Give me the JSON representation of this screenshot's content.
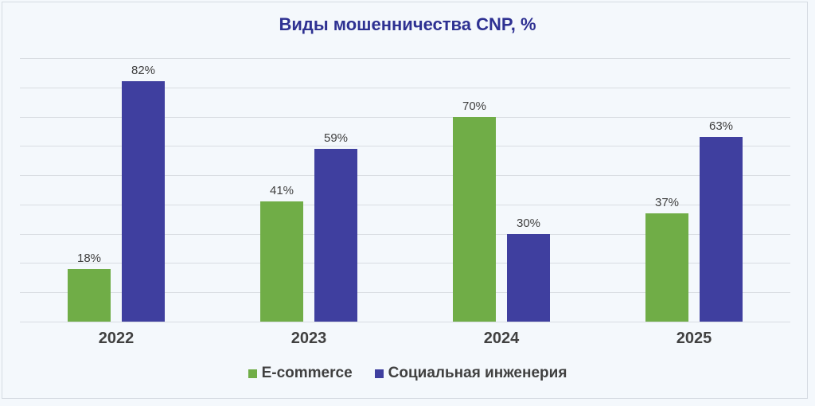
{
  "chart_data": {
    "type": "bar",
    "title": "Виды мошенничества CNP, %",
    "categories": [
      "2022",
      "2023",
      "2024",
      "2025"
    ],
    "series": [
      {
        "name": "E-commerce",
        "color": "#70ad47",
        "values": [
          18,
          41,
          70,
          37
        ],
        "labels": [
          "18%",
          "41%",
          "70%",
          "37%"
        ]
      },
      {
        "name": "Социальная инженерия",
        "color": "#3f3f9f",
        "values": [
          82,
          59,
          30,
          63
        ],
        "labels": [
          "82%",
          "59%",
          "30%",
          "63%"
        ]
      }
    ],
    "xlabel": "",
    "ylabel": "",
    "ylim": [
      0,
      90
    ],
    "grid": true,
    "gridline_step": 10,
    "legend_position": "bottom"
  }
}
